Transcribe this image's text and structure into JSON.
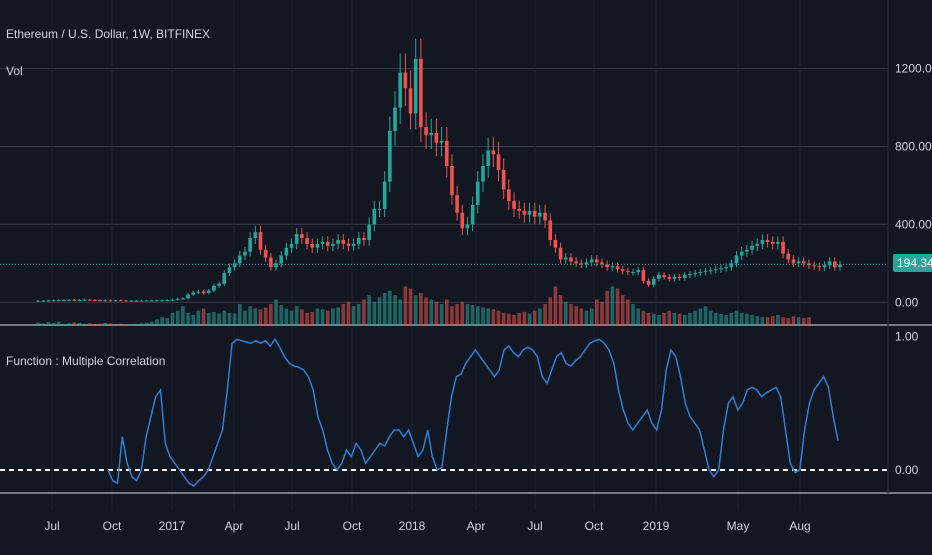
{
  "header": {
    "symbol_title": "Ethereum / U.S. Dollar, 1W, BITFINEX",
    "vol_label": "Vol"
  },
  "indicator": {
    "title": "Function : Multiple Correlation"
  },
  "price_axis": {
    "ticks": [
      "1200.00",
      "800.00",
      "400.00",
      "0.00"
    ],
    "last_price": "194.34"
  },
  "indicator_axis": {
    "ticks": [
      "1.00",
      "0.00"
    ]
  },
  "time_axis": {
    "labels": [
      "Jul",
      "Oct",
      "2017",
      "Apr",
      "Jul",
      "Oct",
      "2018",
      "Apr",
      "Jul",
      "Oct",
      "2019",
      "May",
      "Aug"
    ]
  },
  "colors": {
    "background": "#131722",
    "up": "#26a69a",
    "down": "#ef5350",
    "line": "#2f7fd4",
    "grid": "#363a45",
    "text": "#d1d4dc"
  },
  "chart_data": [
    {
      "type": "candlestick",
      "title": "Ethereum / U.S. Dollar, 1W, BITFINEX",
      "ylim": [
        -50,
        1450
      ],
      "last_value": 194.34,
      "close_values": [
        8,
        8,
        9,
        10,
        11,
        11,
        12,
        11,
        12,
        13,
        12,
        11,
        10,
        10,
        9,
        10,
        9,
        8,
        8,
        8,
        8,
        9,
        9,
        10,
        10,
        11,
        13,
        18,
        20,
        40,
        50,
        55,
        48,
        60,
        85,
        95,
        150,
        180,
        200,
        240,
        260,
        330,
        360,
        270,
        230,
        180,
        200,
        240,
        280,
        300,
        350,
        330,
        300,
        280,
        300,
        310,
        290,
        300,
        320,
        300,
        290,
        300,
        330,
        320,
        400,
        480,
        480,
        620,
        880,
        1000,
        1180,
        1100,
        970,
        1250,
        900,
        860,
        870,
        820,
        830,
        700,
        550,
        460,
        380,
        400,
        500,
        620,
        700,
        780,
        760,
        680,
        580,
        520,
        480,
        470,
        450,
        470,
        440,
        460,
        420,
        320,
        280,
        220,
        230,
        210,
        200,
        195,
        205,
        220,
        205,
        195,
        180,
        185,
        170,
        160,
        155,
        155,
        165,
        110,
        90,
        120,
        140,
        130,
        120,
        130,
        125,
        140,
        145,
        150,
        155,
        160,
        165,
        170,
        175,
        180,
        200,
        240,
        260,
        270,
        290,
        300,
        320,
        310,
        300,
        310,
        250,
        220,
        200,
        210,
        200,
        190,
        185,
        180,
        190,
        210,
        180,
        194
      ]
    },
    {
      "type": "bar",
      "title": "Vol",
      "note": "volume bars below price, relative scale 0-1",
      "values": [
        0.08,
        0.06,
        0.09,
        0.07,
        0.1,
        0.05,
        0.06,
        0.08,
        0.07,
        0.05,
        0.06,
        0.04,
        0.05,
        0.07,
        0.06,
        0.04,
        0.05,
        0.03,
        0.04,
        0.05,
        0.06,
        0.08,
        0.1,
        0.15,
        0.2,
        0.18,
        0.3,
        0.35,
        0.45,
        0.3,
        0.25,
        0.35,
        0.4,
        0.3,
        0.32,
        0.28,
        0.35,
        0.3,
        0.28,
        0.5,
        0.35,
        0.45,
        0.4,
        0.38,
        0.42,
        0.5,
        0.6,
        0.48,
        0.4,
        0.35,
        0.45,
        0.38,
        0.3,
        0.32,
        0.4,
        0.38,
        0.35,
        0.4,
        0.42,
        0.5,
        0.55,
        0.45,
        0.5,
        0.6,
        0.7,
        0.55,
        0.65,
        0.75,
        0.8,
        0.7,
        0.6,
        0.9,
        0.85,
        0.7,
        0.75,
        0.65,
        0.6,
        0.55,
        0.5,
        0.6,
        0.45,
        0.5,
        0.55,
        0.5,
        0.48,
        0.45,
        0.42,
        0.4,
        0.38,
        0.35,
        0.3,
        0.28,
        0.25,
        0.3,
        0.32,
        0.28,
        0.35,
        0.4,
        0.5,
        0.65,
        0.9,
        0.7,
        0.55,
        0.5,
        0.45,
        0.4,
        0.35,
        0.4,
        0.6,
        0.55,
        0.8,
        0.9,
        0.85,
        0.7,
        0.6,
        0.5,
        0.4,
        0.35,
        0.3,
        0.28,
        0.25,
        0.3,
        0.35,
        0.3,
        0.28,
        0.25,
        0.3,
        0.35,
        0.4,
        0.45,
        0.35,
        0.3,
        0.28,
        0.25,
        0.3,
        0.35,
        0.3,
        0.28,
        0.25,
        0.22,
        0.2,
        0.2,
        0.22,
        0.25,
        0.2,
        0.18,
        0.22,
        0.2,
        0.18,
        0.2
      ]
    },
    {
      "type": "line",
      "title": "Function : Multiple Correlation",
      "ylim": [
        -0.15,
        1.05
      ],
      "values": [
        0.0,
        -0.08,
        -0.1,
        0.25,
        0.05,
        -0.05,
        -0.08,
        0.0,
        0.25,
        0.4,
        0.55,
        0.6,
        0.2,
        0.1,
        0.05,
        0.0,
        -0.05,
        -0.1,
        -0.12,
        -0.08,
        -0.05,
        0.0,
        0.1,
        0.2,
        0.3,
        0.6,
        0.95,
        0.98,
        0.97,
        0.96,
        0.95,
        0.97,
        0.95,
        0.97,
        0.93,
        0.98,
        0.92,
        0.85,
        0.8,
        0.78,
        0.77,
        0.75,
        0.7,
        0.6,
        0.4,
        0.3,
        0.15,
        0.05,
        0.0,
        0.05,
        0.15,
        0.1,
        0.2,
        0.15,
        0.05,
        0.1,
        0.15,
        0.2,
        0.18,
        0.25,
        0.3,
        0.3,
        0.25,
        0.3,
        0.2,
        0.1,
        0.15,
        0.3,
        0.1,
        0.0,
        0.02,
        0.3,
        0.55,
        0.7,
        0.72,
        0.8,
        0.85,
        0.9,
        0.85,
        0.8,
        0.75,
        0.7,
        0.75,
        0.9,
        0.93,
        0.88,
        0.85,
        0.9,
        0.92,
        0.9,
        0.85,
        0.7,
        0.65,
        0.75,
        0.85,
        0.88,
        0.8,
        0.78,
        0.82,
        0.85,
        0.9,
        0.95,
        0.97,
        0.98,
        0.95,
        0.9,
        0.8,
        0.6,
        0.45,
        0.35,
        0.3,
        0.35,
        0.4,
        0.45,
        0.35,
        0.3,
        0.45,
        0.75,
        0.9,
        0.85,
        0.7,
        0.5,
        0.4,
        0.35,
        0.3,
        0.15,
        0.0,
        -0.05,
        0.0,
        0.3,
        0.5,
        0.55,
        0.45,
        0.5,
        0.6,
        0.62,
        0.6,
        0.55,
        0.58,
        0.6,
        0.62,
        0.55,
        0.3,
        0.05,
        -0.02,
        0.0,
        0.3,
        0.5,
        0.6,
        0.65,
        0.7,
        0.62,
        0.4,
        0.22
      ]
    }
  ]
}
